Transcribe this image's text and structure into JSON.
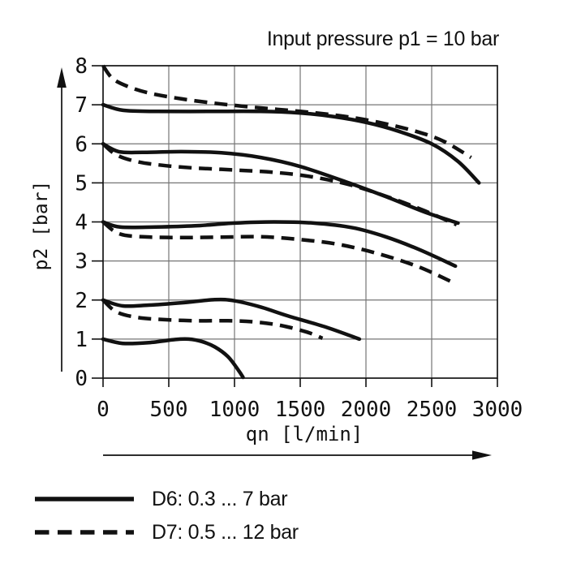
{
  "figure": {
    "background": "#ffffff",
    "ink_color": "#111111",
    "grid_color": "#757575"
  },
  "chart_data": {
    "type": "line",
    "title": "Input pressure p1 = 10 bar",
    "xlabel": "qn [l/min]",
    "ylabel": "p2 [bar]",
    "xlim": [
      0,
      3000
    ],
    "ylim": [
      0,
      8
    ],
    "xticks": [
      0,
      500,
      1000,
      1500,
      2000,
      2500,
      3000
    ],
    "yticks": [
      0,
      1,
      2,
      3,
      4,
      5,
      6,
      7,
      8
    ],
    "grid": true,
    "legend_position": "bottom-left",
    "series": [
      {
        "name": "D6 outlet curve, setting 7 bar",
        "variant": "D6",
        "style": "solid",
        "points": [
          [
            0,
            7.0
          ],
          [
            150,
            6.86
          ],
          [
            400,
            6.83
          ],
          [
            800,
            6.83
          ],
          [
            1200,
            6.83
          ],
          [
            1500,
            6.79
          ],
          [
            1750,
            6.7
          ],
          [
            2000,
            6.55
          ],
          [
            2250,
            6.32
          ],
          [
            2500,
            6.0
          ],
          [
            2700,
            5.55
          ],
          [
            2860,
            5.0
          ]
        ]
      },
      {
        "name": "D7 outlet curve, setting 8 bar",
        "variant": "D7",
        "style": "dashed",
        "points": [
          [
            0,
            8.0
          ],
          [
            70,
            7.68
          ],
          [
            180,
            7.48
          ],
          [
            350,
            7.3
          ],
          [
            600,
            7.15
          ],
          [
            900,
            7.02
          ],
          [
            1200,
            6.92
          ],
          [
            1500,
            6.83
          ],
          [
            1800,
            6.72
          ],
          [
            2100,
            6.55
          ],
          [
            2400,
            6.3
          ],
          [
            2600,
            6.05
          ],
          [
            2800,
            5.65
          ]
        ]
      },
      {
        "name": "D6 outlet curve, setting 6 bar",
        "variant": "D6",
        "style": "solid",
        "points": [
          [
            0,
            6.0
          ],
          [
            120,
            5.8
          ],
          [
            300,
            5.78
          ],
          [
            600,
            5.8
          ],
          [
            900,
            5.77
          ],
          [
            1200,
            5.65
          ],
          [
            1500,
            5.42
          ],
          [
            1870,
            5.0
          ],
          [
            2150,
            4.65
          ],
          [
            2450,
            4.25
          ],
          [
            2700,
            3.97
          ]
        ]
      },
      {
        "name": "D7 outlet curve, setting 6 bar",
        "variant": "D7",
        "style": "dashed",
        "points": [
          [
            0,
            6.0
          ],
          [
            100,
            5.72
          ],
          [
            250,
            5.55
          ],
          [
            450,
            5.45
          ],
          [
            700,
            5.38
          ],
          [
            1000,
            5.33
          ],
          [
            1300,
            5.27
          ],
          [
            1600,
            5.15
          ],
          [
            1900,
            4.93
          ],
          [
            2200,
            4.6
          ],
          [
            2450,
            4.28
          ],
          [
            2690,
            3.93
          ]
        ]
      },
      {
        "name": "D6 outlet curve, setting 4 bar",
        "variant": "D6",
        "style": "solid",
        "points": [
          [
            0,
            4.0
          ],
          [
            130,
            3.87
          ],
          [
            400,
            3.87
          ],
          [
            700,
            3.9
          ],
          [
            1000,
            3.97
          ],
          [
            1300,
            4.0
          ],
          [
            1600,
            3.97
          ],
          [
            1900,
            3.85
          ],
          [
            2150,
            3.62
          ],
          [
            2400,
            3.3
          ],
          [
            2680,
            2.87
          ]
        ]
      },
      {
        "name": "D7 outlet curve, setting 4 bar",
        "variant": "D7",
        "style": "dashed",
        "points": [
          [
            0,
            4.0
          ],
          [
            120,
            3.7
          ],
          [
            300,
            3.62
          ],
          [
            600,
            3.6
          ],
          [
            900,
            3.61
          ],
          [
            1200,
            3.62
          ],
          [
            1500,
            3.55
          ],
          [
            1800,
            3.42
          ],
          [
            2100,
            3.18
          ],
          [
            2400,
            2.85
          ],
          [
            2650,
            2.47
          ]
        ]
      },
      {
        "name": "D6 outlet curve, setting 2 bar",
        "variant": "D6",
        "style": "solid",
        "points": [
          [
            0,
            2.0
          ],
          [
            150,
            1.85
          ],
          [
            350,
            1.87
          ],
          [
            600,
            1.93
          ],
          [
            850,
            2.01
          ],
          [
            1000,
            1.98
          ],
          [
            1200,
            1.82
          ],
          [
            1400,
            1.6
          ],
          [
            1700,
            1.3
          ],
          [
            1950,
            1.0
          ]
        ]
      },
      {
        "name": "D7 outlet curve, setting 2 bar",
        "variant": "D7",
        "style": "dashed",
        "points": [
          [
            0,
            2.0
          ],
          [
            100,
            1.7
          ],
          [
            250,
            1.56
          ],
          [
            450,
            1.5
          ],
          [
            700,
            1.47
          ],
          [
            950,
            1.47
          ],
          [
            1150,
            1.44
          ],
          [
            1350,
            1.35
          ],
          [
            1550,
            1.18
          ],
          [
            1670,
            1.02
          ]
        ]
      },
      {
        "name": "D6 outlet curve, setting 1 bar",
        "variant": "D6",
        "style": "solid",
        "points": [
          [
            0,
            1.0
          ],
          [
            150,
            0.89
          ],
          [
            350,
            0.91
          ],
          [
            550,
            0.99
          ],
          [
            650,
            1.0
          ],
          [
            750,
            0.94
          ],
          [
            850,
            0.8
          ],
          [
            950,
            0.55
          ],
          [
            1030,
            0.2
          ],
          [
            1065,
            0.02
          ]
        ]
      }
    ]
  },
  "legend": {
    "items": [
      {
        "label": "D6: 0.3 ... 7 bar",
        "style": "solid"
      },
      {
        "label": "D7: 0.5 ... 12 bar",
        "style": "dashed"
      }
    ]
  }
}
